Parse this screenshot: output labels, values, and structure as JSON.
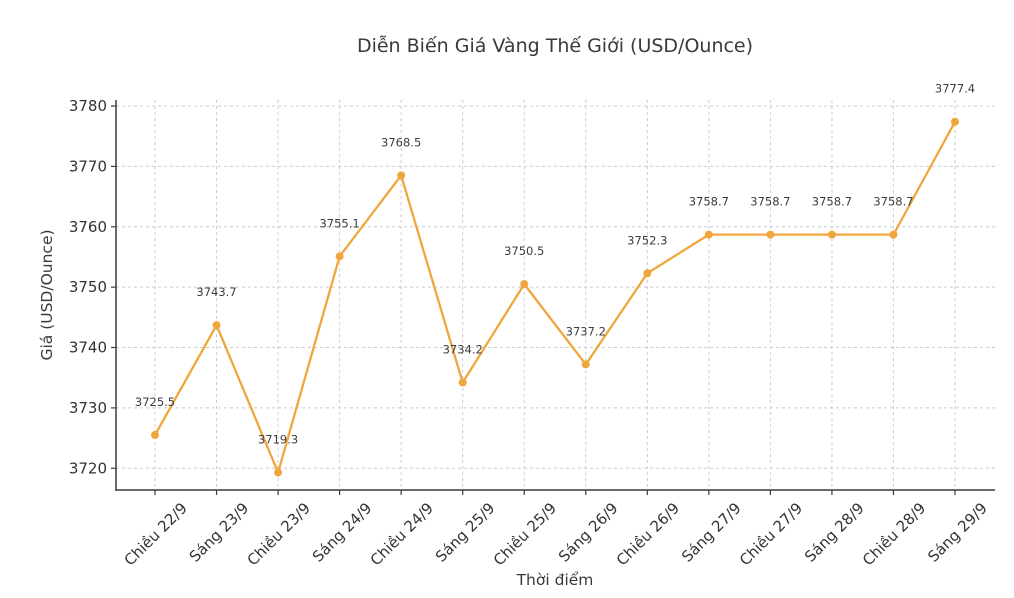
{
  "chart_data": {
    "type": "line",
    "title": "Diễn Biến Giá Vàng Thế Giới (USD/Ounce)",
    "xlabel": "Thời điểm",
    "ylabel": "Giá (USD/Ounce)",
    "categories": [
      "Chiều 22/9",
      "Sáng 23/9",
      "Chiều 23/9",
      "Sáng 24/9",
      "Chiều 24/9",
      "Sáng 25/9",
      "Chiều 25/9",
      "Sáng 26/9",
      "Chiều 26/9",
      "Sáng 27/9",
      "Chiều 27/9",
      "Sáng 28/9",
      "Chiều 28/9",
      "Sáng 29/9"
    ],
    "values": [
      3725.5,
      3743.7,
      3719.3,
      3755.1,
      3768.5,
      3734.2,
      3750.5,
      3737.2,
      3752.3,
      3758.7,
      3758.7,
      3758.7,
      3758.7,
      3777.4
    ],
    "value_labels": [
      "3725.5",
      "3743.7",
      "3719.3",
      "3755.1",
      "3768.5",
      "3734.2",
      "3750.5",
      "3737.2",
      "3752.3",
      "3758.7",
      "3758.7",
      "3758.7",
      "3758.7",
      "3777.4"
    ],
    "yticks": [
      3720,
      3730,
      3740,
      3750,
      3760,
      3770,
      3780
    ],
    "ylim": [
      3716.4,
      3781.0
    ],
    "grid": true,
    "grid_style": "dashed",
    "legend": "none",
    "marker": "circle",
    "colors": {
      "line": "#F0A63C",
      "marker": "#F0A63C",
      "grid": "#cccccc",
      "axis": "#3b3b3b",
      "tick_label": "#333333",
      "title": "#3a3a3a",
      "value_label": "#3d3d3d",
      "background": "#ffffff"
    }
  }
}
